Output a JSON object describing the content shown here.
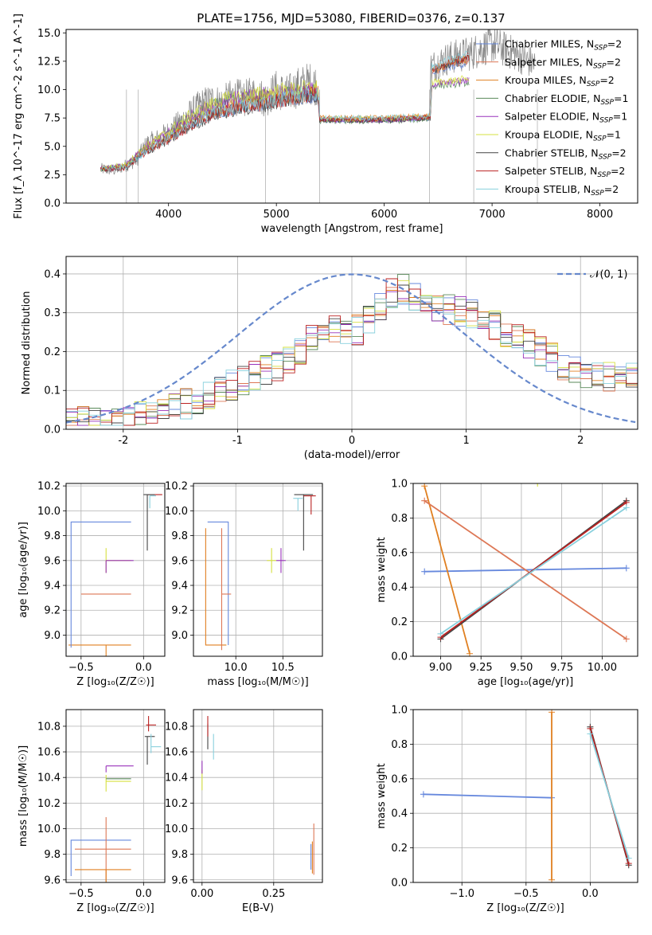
{
  "figure": {
    "title": "PLATE=1756, MJD=53080, FIBERID=0376, z=0.137"
  },
  "legend_series": [
    {
      "name": "Chabrier MILES, N_SSP=2",
      "color": "#6688dd"
    },
    {
      "name": "Salpeter MILES, N_SSP=2",
      "color": "#dd7755"
    },
    {
      "name": "Kroupa MILES, N_SSP=2",
      "color": "#e07f20"
    },
    {
      "name": "Chabrier ELODIE, N_SSP=1",
      "color": "#5a8a5a"
    },
    {
      "name": "Salpeter ELODIE, N_SSP=1",
      "color": "#9933bb"
    },
    {
      "name": "Kroupa ELODIE, N_SSP=1",
      "color": "#d6e040"
    },
    {
      "name": "Chabrier STELIB, N_SSP=2",
      "color": "#444444"
    },
    {
      "name": "Salpeter STELIB, N_SSP=2",
      "color": "#bb2222"
    },
    {
      "name": "Kroupa STELIB, N_SSP=2",
      "color": "#88d0dd"
    }
  ],
  "chart_data": [
    {
      "id": "spectrum",
      "type": "line",
      "xlabel": "wavelength [Angstrom, rest frame]",
      "ylabel": "Flux [f_λ 10^-17 erg cm^-2 s^-1 A^-1]",
      "xlim": [
        3050,
        8350
      ],
      "ylim": [
        0,
        15.3
      ],
      "xticks": [
        4000,
        5000,
        6000,
        7000,
        8000
      ],
      "yticks": [
        0.0,
        2.5,
        5.0,
        7.5,
        10.0,
        12.5,
        15.0
      ],
      "ytick_labels": [
        "0.0",
        "2.5",
        "5.0",
        "7.5",
        "10.0",
        "12.5",
        "15.0"
      ],
      "observed": {
        "color": "#888888",
        "x": [
          3370,
          3500,
          3600,
          3700,
          3800,
          3900,
          4000,
          4100,
          4200,
          4300,
          4400,
          4500,
          4600,
          4700,
          4800,
          4900,
          5000,
          5100,
          5200,
          5300,
          5390,
          5400,
          5600,
          5800,
          6000,
          6200,
          6400,
          6420,
          6430,
          6600,
          6800,
          7000,
          7200,
          7400
        ],
        "y": [
          3.0,
          2.9,
          3.3,
          3.8,
          5.2,
          5.6,
          6.2,
          7.0,
          7.8,
          8.6,
          9.0,
          8.8,
          9.4,
          9.2,
          9.6,
          9.2,
          10.0,
          9.6,
          10.2,
          10.6,
          10.4,
          7.4,
          7.3,
          7.4,
          7.4,
          7.5,
          7.6,
          7.7,
          12.0,
          12.8,
          13.2,
          14.0,
          13.2,
          12.2
        ]
      },
      "models": {
        "x": [
          3370,
          3600,
          3800,
          4000,
          4200,
          4400,
          4600,
          4800,
          5000,
          5200,
          5390,
          5400,
          5800,
          6000,
          6200,
          6430,
          6440,
          6600,
          6790
        ],
        "MILES": [
          3.0,
          3.2,
          4.8,
          5.8,
          7.0,
          8.0,
          8.5,
          8.8,
          9.2,
          9.5,
          9.7,
          7.4,
          7.4,
          7.4,
          7.5,
          7.6,
          11.5,
          12.2,
          12.6
        ],
        "ELODIE": [
          3.0,
          3.3,
          5.0,
          6.2,
          7.6,
          8.6,
          9.2,
          9.4,
          9.7,
          9.9,
          10.0,
          7.3,
          7.3,
          7.3,
          7.4,
          7.5,
          10.5,
          10.6,
          10.8
        ],
        "STELIB": [
          3.0,
          3.1,
          4.6,
          5.6,
          6.8,
          7.8,
          8.3,
          8.6,
          9.0,
          9.4,
          9.6,
          7.4,
          7.4,
          7.4,
          7.5,
          7.6,
          11.8,
          12.4,
          12.9
        ]
      }
    },
    {
      "id": "residuals",
      "type": "line",
      "xlabel": "(data-model)/error",
      "ylabel": "Normed distribution",
      "xlim": [
        -2.5,
        2.5
      ],
      "ylim": [
        0,
        0.445
      ],
      "xticks": [
        -2,
        -1,
        0,
        1,
        2
      ],
      "yticks": [
        0.0,
        0.1,
        0.2,
        0.3,
        0.4
      ],
      "ytick_labels": [
        "0.0",
        "0.1",
        "0.2",
        "0.3",
        "0.4"
      ],
      "reference": {
        "name": "𝒩(0, 1)",
        "mean": 0,
        "sigma": 1,
        "color": "#6688cc"
      },
      "histogram_shape": {
        "x": [
          -2.5,
          -2.0,
          -1.5,
          -1.0,
          -0.5,
          -0.25,
          0.0,
          0.2,
          0.4,
          0.6,
          0.8,
          1.0,
          1.5,
          2.0,
          2.5
        ],
        "y": [
          0.02,
          0.03,
          0.06,
          0.12,
          0.18,
          0.27,
          0.24,
          0.3,
          0.37,
          0.33,
          0.31,
          0.3,
          0.23,
          0.14,
          0.13
        ]
      }
    },
    {
      "id": "age_vs_Z",
      "type": "scatter",
      "xlabel": "Z [log₁₀(Z/Z☉)]",
      "ylabel": "age  [log₁₀(age/yr)]",
      "xlim": [
        -0.62,
        0.17
      ],
      "ylim": [
        8.83,
        10.22
      ],
      "xticks": [
        -0.5,
        0.0
      ],
      "xtick_labels": [
        "−0.5",
        "0.0"
      ],
      "yticks": [
        9.0,
        9.2,
        9.4,
        9.6,
        9.8,
        10.0,
        10.2
      ],
      "ytick_labels": [
        "9.0",
        "9.2",
        "9.4",
        "9.6",
        "9.8",
        "10.0",
        "10.2"
      ]
    },
    {
      "id": "age_vs_mass",
      "type": "scatter",
      "xlabel": "mass [log₁₀(M/M☉)]",
      "xlim": [
        9.55,
        10.92
      ],
      "ylim": [
        8.83,
        10.22
      ],
      "xticks": [
        10.0,
        10.5
      ],
      "xtick_labels": [
        "10.0",
        "10.5"
      ],
      "yticks": [
        9.0,
        9.2,
        9.4,
        9.6,
        9.8,
        10.0,
        10.2
      ],
      "ytick_labels": [
        "9.0",
        "9.2",
        "9.4",
        "9.6",
        "9.8",
        "10.0",
        "10.2"
      ]
    },
    {
      "id": "weight_vs_age",
      "type": "line",
      "xlabel": "age  [log₁₀(age/yr)]",
      "ylabel": "mass weight",
      "xlim": [
        8.83,
        10.22
      ],
      "ylim": [
        0,
        1
      ],
      "xticks": [
        9.0,
        9.25,
        9.5,
        9.75,
        10.0
      ],
      "xtick_labels": [
        "9.00",
        "9.25",
        "9.50",
        "9.75",
        "10.00"
      ],
      "yticks": [
        0.0,
        0.2,
        0.4,
        0.6,
        0.8,
        1.0
      ],
      "ytick_labels": [
        "0.0",
        "0.2",
        "0.4",
        "0.6",
        "0.8",
        "1.0"
      ],
      "series": [
        {
          "name": "Chabrier MILES, N_SSP=2",
          "x": [
            8.9,
            10.15
          ],
          "y": [
            0.49,
            0.51
          ]
        },
        {
          "name": "Kroupa MILES, N_SSP=2",
          "x": [
            8.9,
            9.18
          ],
          "y": [
            0.985,
            0.015
          ]
        },
        {
          "name": "Salpeter MILES, N_SSP=2",
          "x": [
            8.9,
            10.15
          ],
          "y": [
            0.9,
            0.1
          ]
        },
        {
          "name": "Chabrier STELIB, N_SSP=2",
          "x": [
            9.0,
            10.15
          ],
          "y": [
            0.1,
            0.9
          ]
        },
        {
          "name": "Salpeter STELIB, N_SSP=2",
          "x": [
            9.0,
            10.15
          ],
          "y": [
            0.11,
            0.89
          ]
        },
        {
          "name": "Kroupa STELIB, N_SSP=2",
          "x": [
            9.0,
            10.15
          ],
          "y": [
            0.13,
            0.86
          ]
        },
        {
          "name": "Kroupa ELODIE, N_SSP=1",
          "x": [
            9.6
          ],
          "y": [
            1.0
          ]
        }
      ]
    },
    {
      "id": "mass_vs_Z",
      "type": "scatter",
      "xlabel": "Z [log₁₀(Z/Z☉)]",
      "ylabel": "mass [log₁₀(M/M☉)]",
      "xlim": [
        -0.62,
        0.17
      ],
      "ylim": [
        9.58,
        10.93
      ],
      "xticks": [
        -0.5,
        0.0
      ],
      "xtick_labels": [
        "−0.5",
        "0.0"
      ],
      "yticks": [
        9.6,
        9.8,
        10.0,
        10.2,
        10.4,
        10.6,
        10.8
      ],
      "ytick_labels": [
        "9.6",
        "9.8",
        "10.0",
        "10.2",
        "10.4",
        "10.6",
        "10.8"
      ]
    },
    {
      "id": "mass_vs_ebv",
      "type": "scatter",
      "xlabel": "E(B-V)",
      "xlim": [
        -0.03,
        0.42
      ],
      "ylim": [
        9.58,
        10.93
      ],
      "xticks": [
        0.0,
        0.25
      ],
      "xtick_labels": [
        "0.00",
        "0.25"
      ],
      "yticks": [
        9.6,
        9.8,
        10.0,
        10.2,
        10.4,
        10.6,
        10.8
      ],
      "ytick_labels": [
        "9.6",
        "9.8",
        "10.0",
        "10.2",
        "10.4",
        "10.6",
        "10.8"
      ]
    },
    {
      "id": "weight_vs_Z",
      "type": "line",
      "xlabel": "Z [log₁₀(Z/Z☉)]",
      "ylabel": "mass weight",
      "xlim": [
        -1.38,
        0.37
      ],
      "ylim": [
        0,
        1
      ],
      "xticks": [
        -1.0,
        -0.5,
        0.0
      ],
      "xtick_labels": [
        "−1.0",
        "−0.5",
        "0.0"
      ],
      "yticks": [
        0.0,
        0.2,
        0.4,
        0.6,
        0.8,
        1.0
      ],
      "ytick_labels": [
        "0.0",
        "0.2",
        "0.4",
        "0.6",
        "0.8",
        "1.0"
      ],
      "series": [
        {
          "name": "Chabrier MILES, N_SSP=2",
          "x": [
            -1.3,
            -0.3
          ],
          "y": [
            0.51,
            0.49
          ]
        },
        {
          "name": "Kroupa MILES, N_SSP=2",
          "x": [
            -0.3,
            -0.3
          ],
          "y": [
            0.985,
            0.015
          ]
        },
        {
          "name": "Chabrier STELIB, N_SSP=2",
          "x": [
            0.0,
            0.3
          ],
          "y": [
            0.9,
            0.1
          ]
        },
        {
          "name": "Salpeter STELIB, N_SSP=2",
          "x": [
            0.0,
            0.3
          ],
          "y": [
            0.89,
            0.11
          ]
        },
        {
          "name": "Kroupa STELIB, N_SSP=2",
          "x": [
            0.0,
            0.3
          ],
          "y": [
            0.86,
            0.14
          ]
        }
      ]
    }
  ]
}
